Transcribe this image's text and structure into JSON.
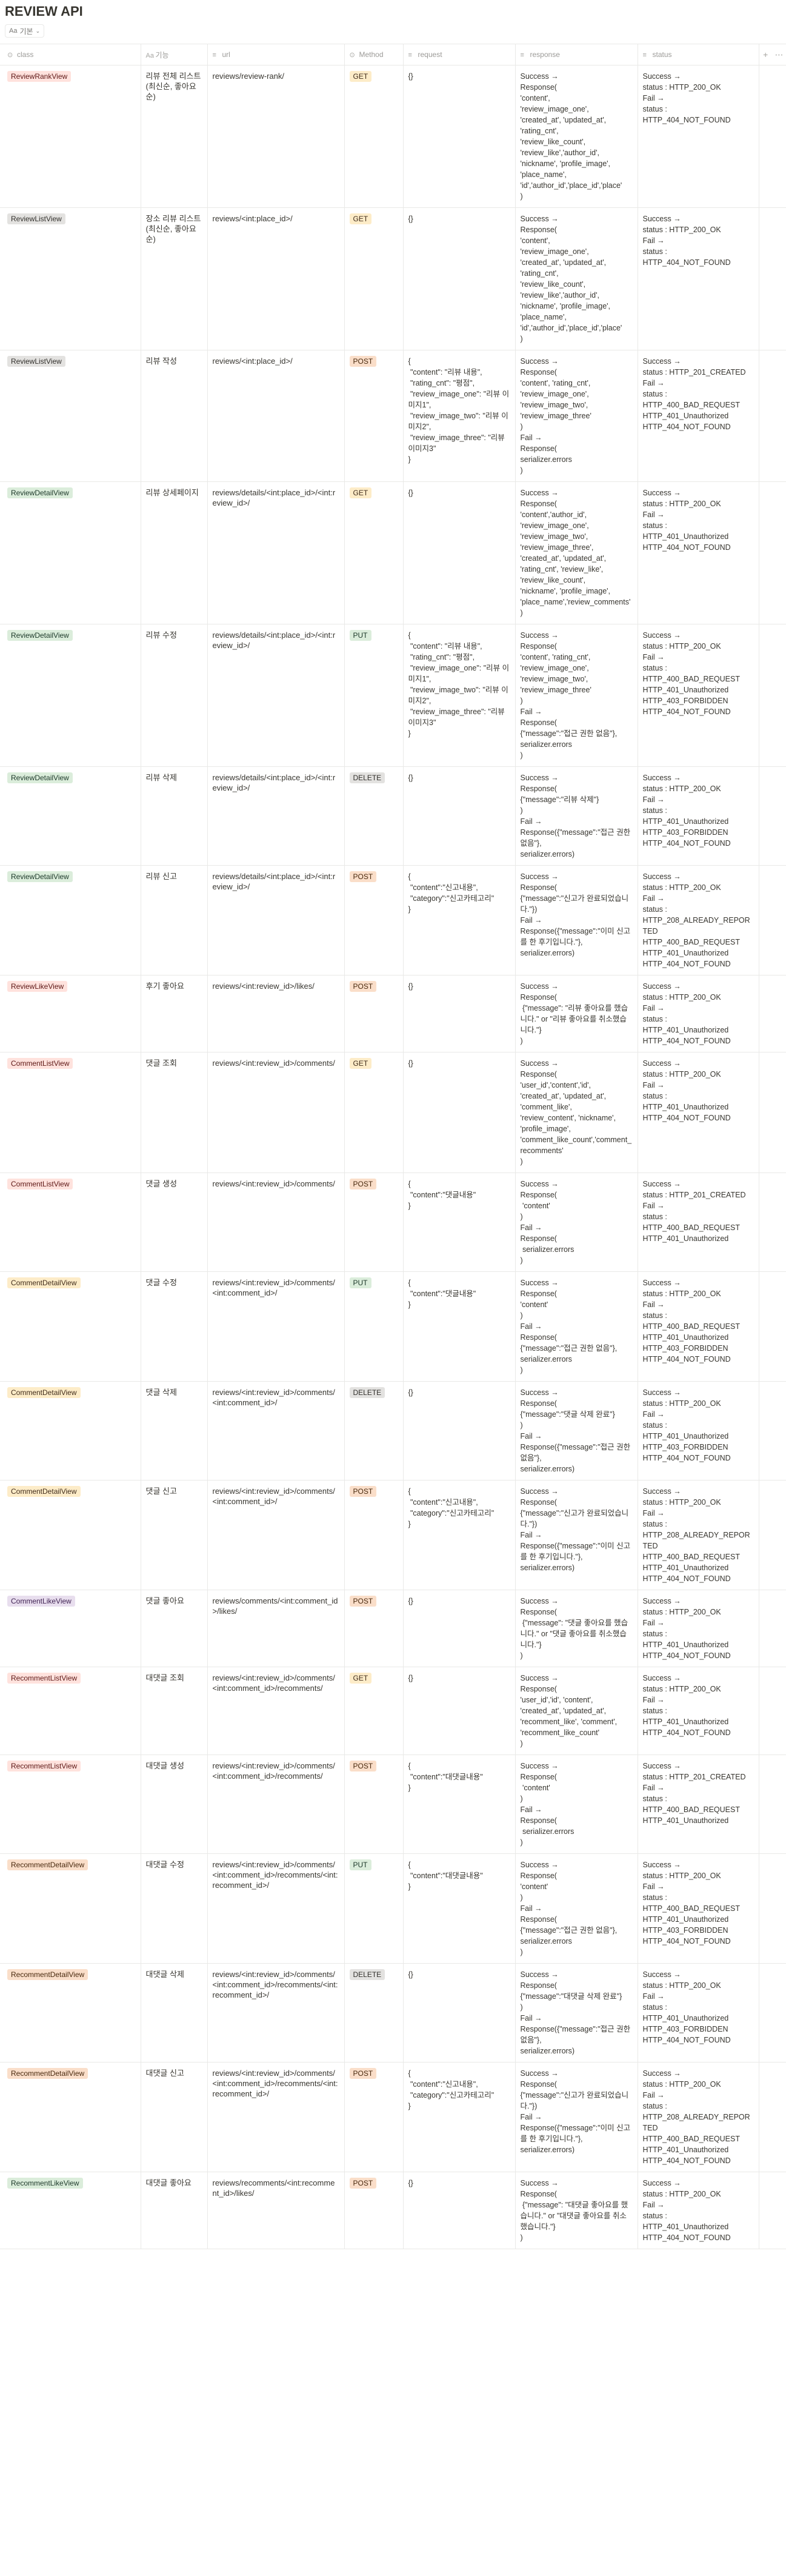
{
  "page": {
    "title": "REVIEW API",
    "view_tab": "기본",
    "view_tab_icon": "Aa"
  },
  "columns": {
    "class": "class",
    "function": "기능",
    "url": "url",
    "method": "Method",
    "request": "request",
    "response": "response",
    "status": "status",
    "add": "+",
    "more": "⋯"
  },
  "tag_colors": {
    "red": "#ffe2dd",
    "gray": "#e3e2e0",
    "green": "#dbeddb",
    "orange": "#fadec9",
    "yellow": "#fdecc8",
    "purple": "#e8deee"
  },
  "rows": [
    {
      "class": "ReviewRankView",
      "class_color": "red",
      "function": "리뷰 전체 리스트(최신순, 좋아요 순)",
      "url": "reviews/review-rank/",
      "method": "GET",
      "request": "{}",
      "response": "Success →\nResponse(\n'content',\n'review_image_one',\n'created_at', 'updated_at',\n'rating_cnt',\n'review_like_count',\n'review_like','author_id',\n'nickname', 'profile_image',\n'place_name',\n'id','author_id','place_id','place'\n)",
      "status": "Success →\nstatus : HTTP_200_OK\nFail →\nstatus :\nHTTP_404_NOT_FOUND"
    },
    {
      "class": "ReviewListView",
      "class_color": "gray",
      "function": "장소 리뷰 리스트(최신순, 좋아요 순)",
      "url": "reviews/<int:place_id>/",
      "method": "GET",
      "request": "{}",
      "response": "Success →\nResponse(\n'content',\n'review_image_one',\n'created_at', 'updated_at',\n'rating_cnt',\n'review_like_count',\n'review_like','author_id',\n'nickname', 'profile_image',\n'place_name',\n'id','author_id','place_id','place'\n)",
      "status": "Success →\nstatus : HTTP_200_OK\nFail →\nstatus :\nHTTP_404_NOT_FOUND"
    },
    {
      "class": "ReviewListView",
      "class_color": "gray",
      "function": "리뷰 작성",
      "url": "reviews/<int:place_id>/",
      "method": "POST",
      "request": "{\n \"content\": \"리뷰 내용\",\n \"rating_cnt\": \"평점\",\n \"review_image_one\": \"리뷰 이미지1\",\n \"review_image_two\": \"리뷰 이미지2\",\n \"review_image_three\": \"리뷰이미지3\"\n}",
      "response": "Success →\nResponse(\n'content', 'rating_cnt',\n'review_image_one',\n'review_image_two',\n'review_image_three'\n)\nFail →\nResponse(\nserializer.errors\n)",
      "status": "Success →\nstatus : HTTP_201_CREATED\nFail →\nstatus :\nHTTP_400_BAD_REQUEST\nHTTP_401_Unauthorized\nHTTP_404_NOT_FOUND"
    },
    {
      "class": "ReviewDetailView",
      "class_color": "green",
      "function": "리뷰 상세페이지",
      "url": "reviews/details/<int:place_id>/<int:review_id>/",
      "method": "GET",
      "request": "{}",
      "response": "Success →\nResponse(\n'content','author_id',\n'review_image_one',\n'review_image_two',\n'review_image_three',\n'created_at', 'updated_at',\n'rating_cnt', 'review_like',\n'review_like_count',\n'nickname', 'profile_image',\n'place_name','review_comments'\n)",
      "status": "Success →\nstatus : HTTP_200_OK\nFail →\nstatus :\nHTTP_401_Unauthorized\nHTTP_404_NOT_FOUND"
    },
    {
      "class": "ReviewDetailView",
      "class_color": "green",
      "function": "리뷰 수정",
      "url": "reviews/details/<int:place_id>/<int:review_id>/",
      "method": "PUT",
      "request": "{\n \"content\": \"리뷰 내용\",\n \"rating_cnt\": \"평점\",\n \"review_image_one\": \"리뷰 이미지1\",\n \"review_image_two\": \"리뷰 이미지2\",\n \"review_image_three\": \"리뷰이미지3\"\n}",
      "response": "Success →\nResponse(\n'content', 'rating_cnt',\n'review_image_one',\n'review_image_two',\n'review_image_three'\n)\nFail →\nResponse(\n{\"message\":\"접근 권한 없음\"},\nserializer.errors\n)",
      "status": "Success →\nstatus : HTTP_200_OK\nFail →\nstatus :\nHTTP_400_BAD_REQUEST\nHTTP_401_Unauthorized\nHTTP_403_FORBIDDEN\nHTTP_404_NOT_FOUND"
    },
    {
      "class": "ReviewDetailView",
      "class_color": "green",
      "function": "리뷰 삭제",
      "url": "reviews/details/<int:place_id>/<int:review_id>/",
      "method": "DELETE",
      "request": "{}",
      "response": "Success →\nResponse(\n{\"message\":\"리뷰 삭제\"}\n)\nFail →\nResponse({\"message\":\"접근 권한 없음\"},\nserializer.errors)",
      "status": "Success →\nstatus : HTTP_200_OK\nFail →\nstatus :\nHTTP_401_Unauthorized\nHTTP_403_FORBIDDEN\nHTTP_404_NOT_FOUND"
    },
    {
      "class": "ReviewDetailView",
      "class_color": "green",
      "function": "리뷰 신고",
      "url": "reviews/details/<int:place_id>/<int:review_id>/",
      "method": "POST",
      "request": "{\n \"content\":\"신고내용\",\n \"category\":\"신고카테고리\"\n}",
      "response": "Success →\nResponse(\n{\"message\":\"신고가 완료되었습니다.\"})\nFail →\nResponse({\"message\":\"이미 신고를 한 후기입니다.\"},\nserializer.errors)",
      "status": "Success →\nstatus : HTTP_200_OK\nFail →\nstatus :\nHTTP_208_ALREADY_REPORTED\nHTTP_400_BAD_REQUEST\nHTTP_401_Unauthorized\nHTTP_404_NOT_FOUND"
    },
    {
      "class": "ReviewLikeView",
      "class_color": "red",
      "function": "후기 좋아요",
      "url": "reviews/<int:review_id>/likes/",
      "method": "POST",
      "request": "{}",
      "response": "Success →\nResponse(\n {\"message\": \"리뷰 좋아요를 했습니다.\" or \"리뷰 좋아요를 취소했습니다.\"}\n)",
      "status": "Success →\nstatus : HTTP_200_OK\nFail →\nstatus :\nHTTP_401_Unauthorized\nHTTP_404_NOT_FOUND"
    },
    {
      "class": "CommentListView",
      "class_color": "red",
      "function": "댓글 조회",
      "url": "reviews/<int:review_id>/comments/",
      "method": "GET",
      "request": "{}",
      "response": "Success →\nResponse(\n'user_id','content','id',\n'created_at', 'updated_at',\n'comment_like',\n'review_content', 'nickname',\n'profile_image',\n'comment_like_count','comment_recomments'\n)",
      "status": "Success →\nstatus : HTTP_200_OK\nFail →\nstatus :\nHTTP_401_Unauthorized\nHTTP_404_NOT_FOUND"
    },
    {
      "class": "CommentListView",
      "class_color": "red",
      "function": "댓글 생성",
      "url": "reviews/<int:review_id>/comments/",
      "method": "POST",
      "request": "{\n \"content\":\"댓글내용\"\n}",
      "response": "Success →\nResponse(\n 'content'\n)\nFail →\nResponse(\n serializer.errors\n)",
      "status": "Success →\nstatus : HTTP_201_CREATED\nFail →\nstatus :\nHTTP_400_BAD_REQUEST\nHTTP_401_Unauthorized"
    },
    {
      "class": "CommentDetailView",
      "class_color": "yellow",
      "function": "댓글 수정",
      "url": "reviews/<int:review_id>/comments/<int:comment_id>/",
      "method": "PUT",
      "request": "{\n \"content\":\"댓글내용\"\n}",
      "response": "Success →\nResponse(\n'content'\n)\nFail →\nResponse(\n{\"message\":\"접근 권한 없음\"},\nserializer.errors\n)",
      "status": "Success →\nstatus : HTTP_200_OK\nFail →\nstatus :\nHTTP_400_BAD_REQUEST\nHTTP_401_Unauthorized\nHTTP_403_FORBIDDEN\nHTTP_404_NOT_FOUND"
    },
    {
      "class": "CommentDetailView",
      "class_color": "yellow",
      "function": "댓글 삭제",
      "url": "reviews/<int:review_id>/comments/<int:comment_id>/",
      "method": "DELETE",
      "request": "{}",
      "response": "Success →\nResponse(\n{\"message\":\"댓글 삭제 완료\"}\n)\nFail →\nResponse({\"message\":\"접근 권한 없음\"},\nserializer.errors)",
      "status": "Success →\nstatus : HTTP_200_OK\nFail →\nstatus :\nHTTP_401_Unauthorized\nHTTP_403_FORBIDDEN\nHTTP_404_NOT_FOUND"
    },
    {
      "class": "CommentDetailView",
      "class_color": "yellow",
      "function": "댓글 신고",
      "url": "reviews/<int:review_id>/comments/<int:comment_id>/",
      "method": "POST",
      "request": "{\n \"content\":\"신고내용\",\n \"category\":\"신고카테고리\"\n}",
      "response": "Success →\nResponse(\n{\"message\":\"신고가 완료되었습니다.\"})\nFail →\nResponse({\"message\":\"이미 신고를 한 후기입니다.\"},\nserializer.errors)",
      "status": "Success →\nstatus : HTTP_200_OK\nFail →\nstatus :\nHTTP_208_ALREADY_REPORTED\nHTTP_400_BAD_REQUEST\nHTTP_401_Unauthorized\nHTTP_404_NOT_FOUND"
    },
    {
      "class": "CommentLikeView",
      "class_color": "purple",
      "function": "댓글 좋아요",
      "url": "reviews/comments/<int:comment_id>/likes/",
      "method": "POST",
      "request": "{}",
      "response": "Success →\nResponse(\n {\"message\": \"댓글 좋아요를 했습니다.\" or \"댓글 좋아요를 취소했습니다.\"}\n)",
      "status": "Success →\nstatus : HTTP_200_OK\nFail →\nstatus :\nHTTP_401_Unauthorized\nHTTP_404_NOT_FOUND"
    },
    {
      "class": "RecommentListView",
      "class_color": "red",
      "function": "대댓글 조회",
      "url": "reviews/<int:review_id>/comments/<int:comment_id>/recomments/",
      "method": "GET",
      "request": "{}",
      "response": "Success →\nResponse(\n'user_id','id', 'content',\n'created_at', 'updated_at',\n'recomment_like', 'comment',\n'recomment_like_count'\n)",
      "status": "Success →\nstatus : HTTP_200_OK\nFail →\nstatus :\nHTTP_401_Unauthorized\nHTTP_404_NOT_FOUND"
    },
    {
      "class": "RecommentListView",
      "class_color": "red",
      "function": "대댓글 생성",
      "url": "reviews/<int:review_id>/comments/<int:comment_id>/recomments/",
      "method": "POST",
      "request": "{\n \"content\":\"대댓글내용\"\n}",
      "response": "Success →\nResponse(\n 'content'\n)\nFail →\nResponse(\n serializer.errors\n)",
      "status": "Success →\nstatus : HTTP_201_CREATED\nFail →\nstatus :\nHTTP_400_BAD_REQUEST\nHTTP_401_Unauthorized"
    },
    {
      "class": "RecommentDetailView",
      "class_color": "orange",
      "function": "대댓글 수정",
      "url": "reviews/<int:review_id>/comments/<int:comment_id>/recomments/<int:recomment_id>/",
      "method": "PUT",
      "request": "{\n \"content\":\"대댓글내용\"\n}",
      "response": "Success →\nResponse(\n'content'\n)\nFail →\nResponse(\n{\"message\":\"접근 권한 없음\"},\nserializer.errors\n)",
      "status": "Success →\nstatus : HTTP_200_OK\nFail →\nstatus :\nHTTP_400_BAD_REQUEST\nHTTP_401_Unauthorized\nHTTP_403_FORBIDDEN\nHTTP_404_NOT_FOUND"
    },
    {
      "class": "RecommentDetailView",
      "class_color": "orange",
      "function": "대댓글 삭제",
      "url": "reviews/<int:review_id>/comments/<int:comment_id>/recomments/<int:recomment_id>/",
      "method": "DELETE",
      "request": "{}",
      "response": "Success →\nResponse(\n{\"message\":\"대댓글 삭제 완료\"}\n)\nFail →\nResponse({\"message\":\"접근 권한 없음\"},\nserializer.errors)",
      "status": "Success →\nstatus : HTTP_200_OK\nFail →\nstatus :\nHTTP_401_Unauthorized\nHTTP_403_FORBIDDEN\nHTTP_404_NOT_FOUND"
    },
    {
      "class": "RecommentDetailView",
      "class_color": "orange",
      "function": "대댓글 신고",
      "url": "reviews/<int:review_id>/comments/<int:comment_id>/recomments/<int:recomment_id>/",
      "method": "POST",
      "request": "{\n \"content\":\"신고내용\",\n \"category\":\"신고카테고리\"\n}",
      "response": "Success →\nResponse(\n{\"message\":\"신고가 완료되었습니다.\"})\nFail →\nResponse({\"message\":\"이미 신고를 한 후기입니다.\"},\nserializer.errors)",
      "status": "Success →\nstatus : HTTP_200_OK\nFail →\nstatus :\nHTTP_208_ALREADY_REPORTED\nHTTP_400_BAD_REQUEST\nHTTP_401_Unauthorized\nHTTP_404_NOT_FOUND"
    },
    {
      "class": "RecommentLikeView",
      "class_color": "green",
      "function": "대댓글 좋아요",
      "url": "reviews/recomments/<int:recomment_id>/likes/",
      "method": "POST",
      "request": "{}",
      "response": "Success →\nResponse(\n {\"message\": \"대댓글 좋아요를 했습니다.\" or \"대댓글 좋아요를 취소했습니다.\"}\n)",
      "status": "Success →\nstatus : HTTP_200_OK\nFail →\nstatus :\nHTTP_401_Unauthorized\nHTTP_404_NOT_FOUND"
    }
  ]
}
